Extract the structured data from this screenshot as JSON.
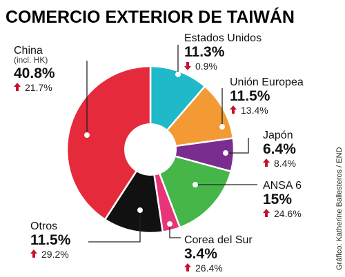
{
  "chart_data": {
    "type": "pie",
    "title": "COMERCIO EXTERIOR DE TAIWÁN",
    "credit": "Gráfico: Katherine Ballesteros / END",
    "slices": [
      {
        "label": "Estados Unidos",
        "value": 11.3,
        "value_label": "11.3%",
        "change": "0.9%",
        "change_direction": "down",
        "color": "#1fb9c9"
      },
      {
        "label": "Unión Europea",
        "value": 11.5,
        "value_label": "11.5%",
        "change": "13.4%",
        "change_direction": "up",
        "color": "#f39a34"
      },
      {
        "label": "Japón",
        "value": 6.4,
        "value_label": "6.4%",
        "change": "8.4%",
        "change_direction": "up",
        "color": "#7b2c8f"
      },
      {
        "label": "ANSA 6",
        "value": 15,
        "value_label": "15%",
        "change": "24.6%",
        "change_direction": "up",
        "color": "#46b649"
      },
      {
        "label": "Corea del Sur",
        "value": 3.4,
        "value_label": "3.4%",
        "change": "26.4%",
        "change_direction": "up",
        "color": "#e8357a"
      },
      {
        "label": "Otros",
        "value": 11.5,
        "value_label": "11.5%",
        "change": "29.2%",
        "change_direction": "up",
        "color": "#111111"
      },
      {
        "label": "China",
        "sublabel": "(incl. HK)",
        "value": 40.8,
        "value_label": "40.8%",
        "change": "21.7%",
        "change_direction": "up",
        "color": "#e52a3c"
      }
    ],
    "colors": {
      "arrow_up": "#c8102e",
      "arrow_down": "#c8102e",
      "leader": "#222222"
    }
  }
}
